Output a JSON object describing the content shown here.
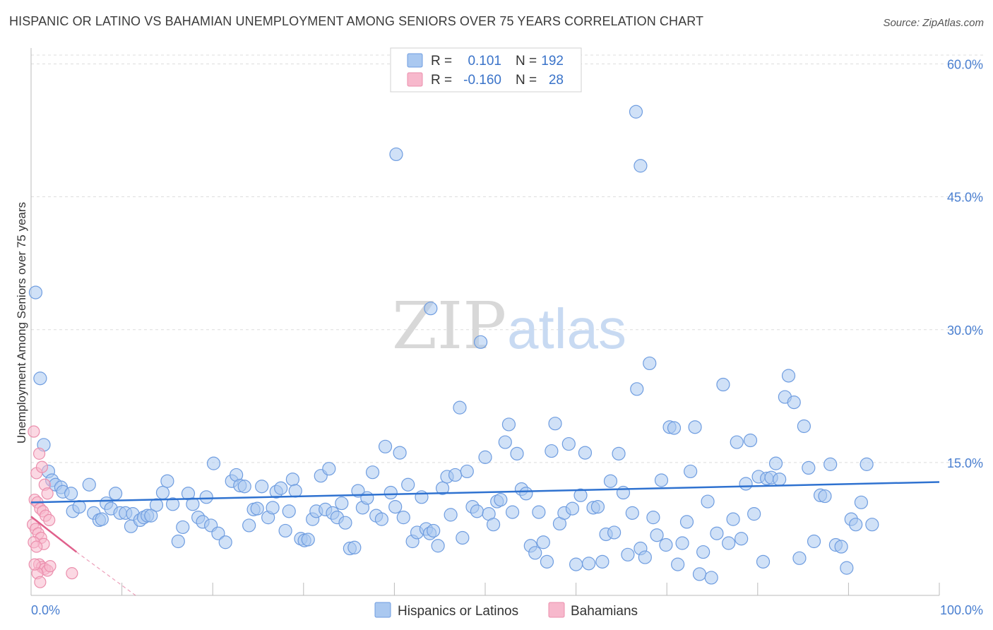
{
  "title": "HISPANIC OR LATINO VS BAHAMIAN UNEMPLOYMENT AMONG SENIORS OVER 75 YEARS CORRELATION CHART",
  "source": "Source: ZipAtlas.com",
  "watermark": {
    "zip": "ZIP",
    "atlas": "atlas"
  },
  "colors": {
    "blue_fill": "#aac8f0",
    "blue_stroke": "#6f9de0",
    "blue_line": "#2f72d0",
    "pink_fill": "#f7b8cc",
    "pink_stroke": "#eb8fad",
    "pink_line": "#e0608c",
    "grid": "#dddddd",
    "tick_text": "#4a7fd0"
  },
  "legend": {
    "rows": [
      {
        "r_label": "R =",
        "r_value": "0.101",
        "n_label": "N =",
        "n_value": "192"
      },
      {
        "r_label": "R =",
        "r_value": "-0.160",
        "n_label": "N =",
        "n_value": "28"
      }
    ]
  },
  "chart_data": {
    "type": "scatter",
    "title": "HISPANIC OR LATINO VS BAHAMIAN UNEMPLOYMENT AMONG SENIORS OVER 75 YEARS CORRELATION CHART",
    "xlabel": "",
    "ylabel": "Unemployment Among Seniors over 75 years",
    "xlim": [
      0,
      100
    ],
    "ylim": [
      0,
      61
    ],
    "x_tick_labels": [
      "0.0%",
      "100.0%"
    ],
    "y_ticks": [
      15,
      30,
      45,
      60
    ],
    "y_tick_labels": [
      "15.0%",
      "30.0%",
      "45.0%",
      "60.0%"
    ],
    "grid": true,
    "legend_position": "top-center",
    "series": [
      {
        "name": "Hispanics or Latinos",
        "trend": {
          "x0": 0,
          "y0": 10.5,
          "x1": 100,
          "y1": 12.8
        },
        "points": [
          [
            0.5,
            34.2
          ],
          [
            1.0,
            24.5
          ],
          [
            1.4,
            17.0
          ],
          [
            1.9,
            14.0
          ],
          [
            2.3,
            13.0
          ],
          [
            2.7,
            12.5
          ],
          [
            3.3,
            12.2
          ],
          [
            3.5,
            11.7
          ],
          [
            4.4,
            11.5
          ],
          [
            4.6,
            9.5
          ],
          [
            5.3,
            10.0
          ],
          [
            6.4,
            12.5
          ],
          [
            6.9,
            9.3
          ],
          [
            7.5,
            8.5
          ],
          [
            7.8,
            8.6
          ],
          [
            8.3,
            10.4
          ],
          [
            8.8,
            9.8
          ],
          [
            9.3,
            11.5
          ],
          [
            9.8,
            9.3
          ],
          [
            10.4,
            9.3
          ],
          [
            11.0,
            7.8
          ],
          [
            11.2,
            9.2
          ],
          [
            12.0,
            8.5
          ],
          [
            12.4,
            8.8
          ],
          [
            12.8,
            9.0
          ],
          [
            13.2,
            9.0
          ],
          [
            13.8,
            10.2
          ],
          [
            14.5,
            11.6
          ],
          [
            15.0,
            12.9
          ],
          [
            15.6,
            10.3
          ],
          [
            16.2,
            6.1
          ],
          [
            16.7,
            7.7
          ],
          [
            17.3,
            11.5
          ],
          [
            17.8,
            10.3
          ],
          [
            18.4,
            8.8
          ],
          [
            18.9,
            8.3
          ],
          [
            19.3,
            11.1
          ],
          [
            19.8,
            7.9
          ],
          [
            20.1,
            14.9
          ],
          [
            20.6,
            7.0
          ],
          [
            21.4,
            6.0
          ],
          [
            22.1,
            12.9
          ],
          [
            22.6,
            13.6
          ],
          [
            23.0,
            12.4
          ],
          [
            23.5,
            12.3
          ],
          [
            24.0,
            7.9
          ],
          [
            24.5,
            9.7
          ],
          [
            24.9,
            9.8
          ],
          [
            25.4,
            12.3
          ],
          [
            26.1,
            8.8
          ],
          [
            26.6,
            9.9
          ],
          [
            27.0,
            11.7
          ],
          [
            27.5,
            12.1
          ],
          [
            28.0,
            7.3
          ],
          [
            28.4,
            9.5
          ],
          [
            28.8,
            13.1
          ],
          [
            29.1,
            11.8
          ],
          [
            29.7,
            6.4
          ],
          [
            30.1,
            6.2
          ],
          [
            30.5,
            6.3
          ],
          [
            31.0,
            8.6
          ],
          [
            31.4,
            9.5
          ],
          [
            31.9,
            13.5
          ],
          [
            32.4,
            9.7
          ],
          [
            32.8,
            14.3
          ],
          [
            33.2,
            9.3
          ],
          [
            33.7,
            8.8
          ],
          [
            34.2,
            10.4
          ],
          [
            34.6,
            8.2
          ],
          [
            35.1,
            5.3
          ],
          [
            35.6,
            5.4
          ],
          [
            36.0,
            11.8
          ],
          [
            36.5,
            9.9
          ],
          [
            37.0,
            11.0
          ],
          [
            37.6,
            13.9
          ],
          [
            38.0,
            9.0
          ],
          [
            38.6,
            8.6
          ],
          [
            39.0,
            16.8
          ],
          [
            39.6,
            11.6
          ],
          [
            40.1,
            10.0
          ],
          [
            40.6,
            16.1
          ],
          [
            41.0,
            8.8
          ],
          [
            41.5,
            12.5
          ],
          [
            42.0,
            6.1
          ],
          [
            42.5,
            7.1
          ],
          [
            43.0,
            11.1
          ],
          [
            43.5,
            7.5
          ],
          [
            43.9,
            7.0
          ],
          [
            44.3,
            7.3
          ],
          [
            44.8,
            5.6
          ],
          [
            45.3,
            12.1
          ],
          [
            45.8,
            13.4
          ],
          [
            46.2,
            9.1
          ],
          [
            46.7,
            13.6
          ],
          [
            47.2,
            21.2
          ],
          [
            47.5,
            6.5
          ],
          [
            48.0,
            14.0
          ],
          [
            48.6,
            10.0
          ],
          [
            49.1,
            9.5
          ],
          [
            49.5,
            28.6
          ],
          [
            50.0,
            15.6
          ],
          [
            50.4,
            9.2
          ],
          [
            50.9,
            8.0
          ],
          [
            51.3,
            10.6
          ],
          [
            51.7,
            10.8
          ],
          [
            52.2,
            17.3
          ],
          [
            52.6,
            19.3
          ],
          [
            53.0,
            9.4
          ],
          [
            53.5,
            16.0
          ],
          [
            54.0,
            12.0
          ],
          [
            54.5,
            11.5
          ],
          [
            55.0,
            5.6
          ],
          [
            55.5,
            4.8
          ],
          [
            55.9,
            9.4
          ],
          [
            56.4,
            6.0
          ],
          [
            56.8,
            3.8
          ],
          [
            57.3,
            16.3
          ],
          [
            57.7,
            19.4
          ],
          [
            58.2,
            8.1
          ],
          [
            58.7,
            9.3
          ],
          [
            59.2,
            17.1
          ],
          [
            59.6,
            9.8
          ],
          [
            60.0,
            3.5
          ],
          [
            60.5,
            11.3
          ],
          [
            61.0,
            16.1
          ],
          [
            61.4,
            3.6
          ],
          [
            61.9,
            9.9
          ],
          [
            62.4,
            10.0
          ],
          [
            62.9,
            3.8
          ],
          [
            63.3,
            6.9
          ],
          [
            63.8,
            12.9
          ],
          [
            64.2,
            7.1
          ],
          [
            64.7,
            16.0
          ],
          [
            65.2,
            11.6
          ],
          [
            65.7,
            4.6
          ],
          [
            66.2,
            9.3
          ],
          [
            66.7,
            23.3
          ],
          [
            67.1,
            5.3
          ],
          [
            67.6,
            4.3
          ],
          [
            68.1,
            26.2
          ],
          [
            68.5,
            8.8
          ],
          [
            68.9,
            6.8
          ],
          [
            69.4,
            13.0
          ],
          [
            69.9,
            5.7
          ],
          [
            70.3,
            19.0
          ],
          [
            70.8,
            18.9
          ],
          [
            71.2,
            3.5
          ],
          [
            71.7,
            5.9
          ],
          [
            72.2,
            8.3
          ],
          [
            72.6,
            14.0
          ],
          [
            73.1,
            19.0
          ],
          [
            73.6,
            2.4
          ],
          [
            74.0,
            4.9
          ],
          [
            74.5,
            10.6
          ],
          [
            74.9,
            2.0
          ],
          [
            75.5,
            7.0
          ],
          [
            76.2,
            23.8
          ],
          [
            76.8,
            5.9
          ],
          [
            77.3,
            8.6
          ],
          [
            77.7,
            17.3
          ],
          [
            78.2,
            6.4
          ],
          [
            78.7,
            12.6
          ],
          [
            79.2,
            17.5
          ],
          [
            79.6,
            9.2
          ],
          [
            80.1,
            13.4
          ],
          [
            80.6,
            3.8
          ],
          [
            81.0,
            13.2
          ],
          [
            81.5,
            13.3
          ],
          [
            82.0,
            14.9
          ],
          [
            82.4,
            13.1
          ],
          [
            83.0,
            22.4
          ],
          [
            83.4,
            24.8
          ],
          [
            84.0,
            21.8
          ],
          [
            84.6,
            4.2
          ],
          [
            85.1,
            19.1
          ],
          [
            85.6,
            14.4
          ],
          [
            86.2,
            6.1
          ],
          [
            86.9,
            11.3
          ],
          [
            87.4,
            11.2
          ],
          [
            88.0,
            14.8
          ],
          [
            88.6,
            5.7
          ],
          [
            89.2,
            5.5
          ],
          [
            89.8,
            3.1
          ],
          [
            90.3,
            8.6
          ],
          [
            90.8,
            8.0
          ],
          [
            91.4,
            10.5
          ],
          [
            92.0,
            14.8
          ],
          [
            92.6,
            8.0
          ],
          [
            66.6,
            54.6
          ],
          [
            67.1,
            48.5
          ],
          [
            40.2,
            49.8
          ],
          [
            44.0,
            32.4
          ]
        ]
      },
      {
        "name": "Bahamians",
        "trend": {
          "x0": 0,
          "y0": 8.9,
          "x1": 5.0,
          "y1": 4.9
        },
        "trend_dashed": {
          "x0": 5.0,
          "y0": 4.9,
          "x1": 11.5,
          "y1": 0
        },
        "points": [
          [
            0.3,
            18.5
          ],
          [
            0.6,
            13.8
          ],
          [
            0.9,
            16.0
          ],
          [
            1.2,
            14.5
          ],
          [
            1.5,
            12.5
          ],
          [
            1.8,
            11.5
          ],
          [
            0.4,
            10.8
          ],
          [
            0.7,
            10.5
          ],
          [
            1.0,
            9.8
          ],
          [
            1.3,
            9.5
          ],
          [
            1.6,
            9.0
          ],
          [
            2.0,
            8.5
          ],
          [
            0.2,
            8.0
          ],
          [
            0.5,
            7.5
          ],
          [
            0.8,
            7.0
          ],
          [
            1.1,
            6.5
          ],
          [
            1.4,
            5.8
          ],
          [
            0.3,
            6.0
          ],
          [
            0.6,
            5.5
          ],
          [
            0.9,
            3.5
          ],
          [
            1.2,
            3.2
          ],
          [
            1.5,
            3.0
          ],
          [
            1.8,
            2.8
          ],
          [
            2.1,
            3.3
          ],
          [
            0.7,
            2.5
          ],
          [
            1.0,
            1.5
          ],
          [
            4.5,
            2.5
          ],
          [
            0.4,
            3.5
          ]
        ]
      }
    ]
  }
}
